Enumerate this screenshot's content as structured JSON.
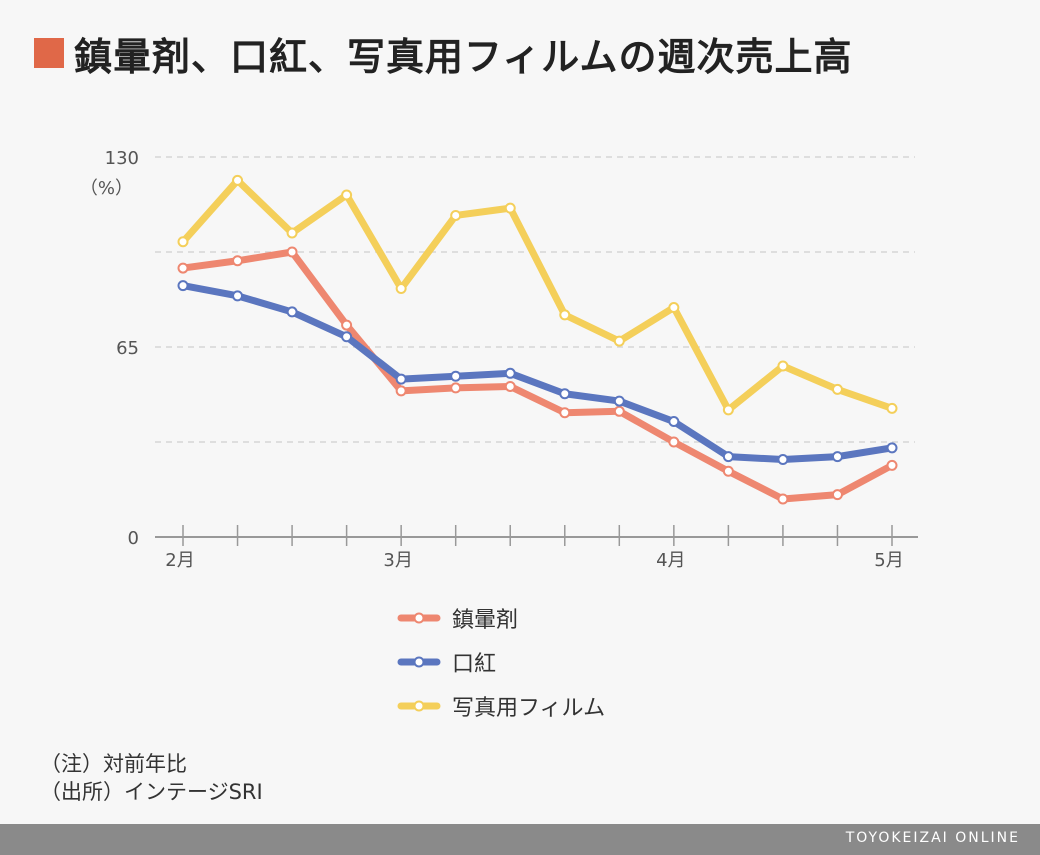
{
  "title": "鎮暈剤、口紅、写真用フィルムの週次売上高",
  "colors": {
    "title_square": "#e06848",
    "grid": "#d6d6d6",
    "axis": "#999999",
    "tick_text": "#555555",
    "footer": "#8a8a8a"
  },
  "chart_data": {
    "type": "line",
    "ylabel": "（%）",
    "ylim": [
      0,
      130
    ],
    "yticks": [
      0,
      65,
      130
    ],
    "grid": true,
    "legend_position": "bottom",
    "x": [
      0,
      1,
      2,
      3,
      4,
      5,
      6,
      7,
      8,
      9,
      10,
      11,
      12,
      13
    ],
    "xtick_labels": [
      {
        "x": 0,
        "label": "2月"
      },
      {
        "x": 4,
        "label": "3月"
      },
      {
        "x": 9,
        "label": "4月"
      },
      {
        "x": 13,
        "label": "5月"
      }
    ],
    "series": [
      {
        "name": "鎮暈剤",
        "color": "#ee8770",
        "values": [
          92,
          94.5,
          97.5,
          72.5,
          50,
          51,
          51.5,
          42.5,
          43,
          32.5,
          22.5,
          13,
          14.5,
          24.5
        ]
      },
      {
        "name": "口紅",
        "color": "#5b76bf",
        "values": [
          86,
          82.5,
          77,
          68.5,
          54,
          55,
          56,
          49,
          46.5,
          39.5,
          27.5,
          26.5,
          27.5,
          30.5
        ]
      },
      {
        "name": "写真用フィルム",
        "color": "#f4cf5a",
        "values": [
          101,
          122,
          104,
          117,
          85,
          110,
          112.5,
          76,
          67,
          78.5,
          43.5,
          58.5,
          50.5,
          44
        ]
      }
    ]
  },
  "notes": [
    "（注）対前年比",
    "（出所）インテージSRI"
  ],
  "footer": {
    "brand": "TOYOKEIZAI ONLINE"
  }
}
